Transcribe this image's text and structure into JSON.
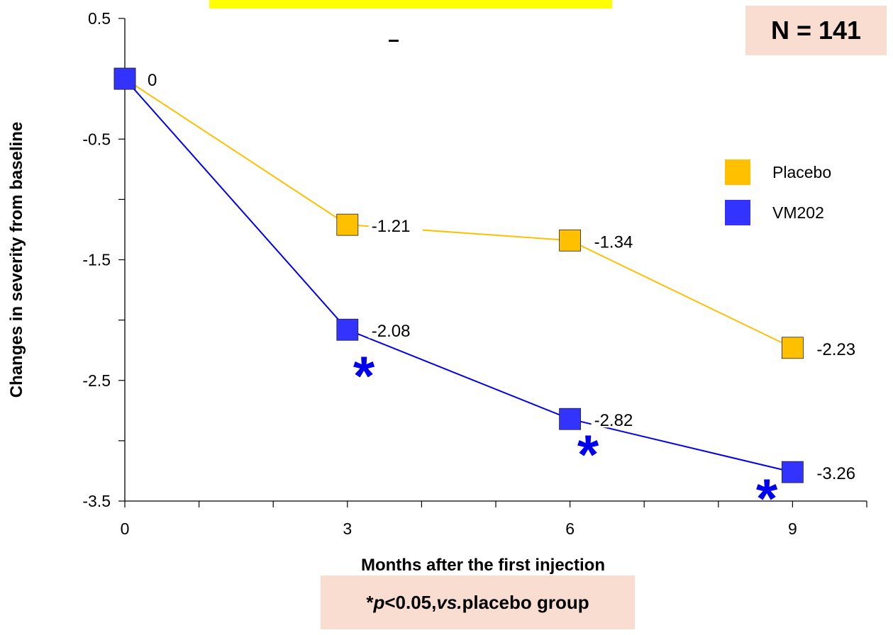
{
  "header_banner": "",
  "n_label": "N = 141",
  "footnote": {
    "star": "*",
    "p": "p",
    "rest": "<0.05, ",
    "vs": "vs.",
    "tail": " placebo group"
  },
  "chart_data": {
    "type": "line",
    "x": [
      0,
      3,
      6,
      9
    ],
    "xticks": [
      "0",
      "3",
      "6",
      "9"
    ],
    "xlabel": "Months after the first injection",
    "ylabel": "Changes in severity from baseline",
    "yticks": [
      "0.5",
      "-0.5",
      "-1.5",
      "-2.5",
      "-3.5"
    ],
    "ylim": [
      -3.5,
      0.5
    ],
    "xlim": [
      0,
      10
    ],
    "grid": false,
    "legend_position": "right",
    "series": [
      {
        "name": "Placebo",
        "color": "#ffbf00",
        "marker_color": "#ffc000",
        "values": [
          0,
          -1.21,
          -1.34,
          -2.23
        ],
        "labels": [
          "",
          "-1.21",
          "-1.34",
          "-2.23"
        ]
      },
      {
        "name": "VM202",
        "color": "#0000ee",
        "marker_color": "#3333ff",
        "values": [
          0,
          -2.08,
          -2.82,
          -3.26
        ],
        "labels": [
          "0",
          "-2.08",
          "-2.82",
          "-3.26"
        ]
      }
    ],
    "significance_markers": [
      {
        "x": 3,
        "symbol": "*"
      },
      {
        "x": 6,
        "symbol": "*"
      },
      {
        "x": 9,
        "symbol": "*"
      }
    ]
  }
}
